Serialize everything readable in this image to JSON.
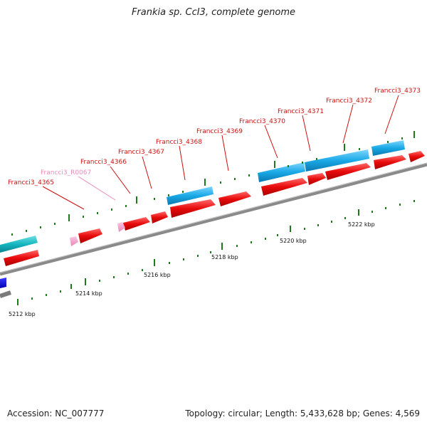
{
  "title": "Frankia sp. CcI3, complete genome",
  "footer": {
    "accession": "Accession: NC_007777",
    "summary": "Topology: circular; Length: 5,433,628 bp; Genes: 4,569"
  },
  "colors": {
    "backbone": "#8a8a8a",
    "forward_cds": "#19a9e6",
    "reverse_cds": "#e80b0b",
    "rna": "#f29ac6",
    "label_red": "#cc1111",
    "label_pink": "#ee88bb",
    "tick_green": "#1f7a1f"
  },
  "scale": {
    "tick_labels": [
      "5212 kbp",
      "5214 kbp",
      "5216 kbp",
      "5218 kbp",
      "5220 kbp",
      "5222 kbp"
    ]
  },
  "gene_labels": [
    {
      "text": "Francci3_4365",
      "kind": "cds"
    },
    {
      "text": "Francci3_R0067",
      "kind": "rna"
    },
    {
      "text": "Francci3_4366",
      "kind": "cds"
    },
    {
      "text": "Francci3_4367",
      "kind": "cds"
    },
    {
      "text": "Francci3_4368",
      "kind": "cds"
    },
    {
      "text": "Francci3_4369",
      "kind": "cds"
    },
    {
      "text": "Francci3_4370",
      "kind": "cds"
    },
    {
      "text": "Francci3_4371",
      "kind": "cds"
    },
    {
      "text": "Francci3_4372",
      "kind": "cds"
    },
    {
      "text": "Francci3_4373",
      "kind": "cds"
    }
  ]
}
